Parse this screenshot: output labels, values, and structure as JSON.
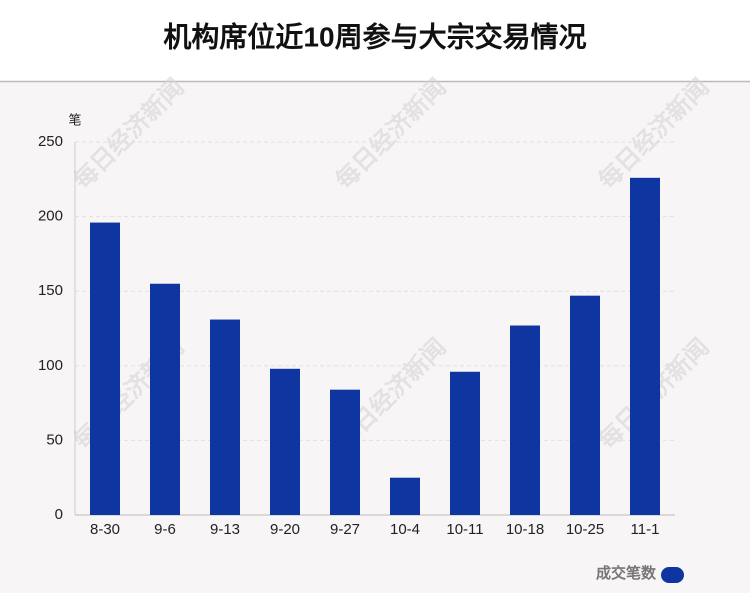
{
  "chart_data": {
    "type": "bar",
    "title": "机构席位近10周参与大宗交易情况",
    "y_label": "笔",
    "watermark": "每日经济新闻",
    "categories": [
      "8-30",
      "9-6",
      "9-13",
      "9-20",
      "9-27",
      "10-4",
      "10-11",
      "10-18",
      "10-25",
      "11-1"
    ],
    "series": [
      {
        "name": "成交笔数",
        "color": "#0e35a0",
        "values": [
          196,
          155,
          131,
          98,
          84,
          25,
          96,
          127,
          147,
          226
        ]
      }
    ],
    "ylim": [
      0,
      250
    ],
    "yticks": [
      0,
      50,
      100,
      150,
      200,
      250
    ],
    "grid": true,
    "legend": "bottom-right"
  }
}
